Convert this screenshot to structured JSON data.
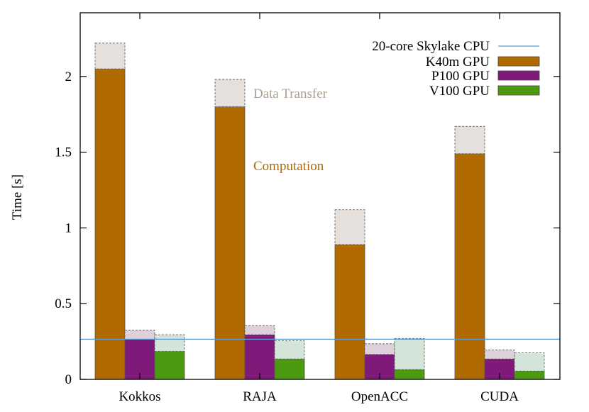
{
  "chart_data": {
    "type": "bar",
    "stacked": true,
    "title": "",
    "xlabel": "",
    "ylabel": "Time [s]",
    "ylim": [
      0,
      2.5
    ],
    "yticks": [
      0,
      0.5,
      1,
      1.5,
      2
    ],
    "ytick_labels": [
      "0",
      "0.5",
      "1",
      "1.5",
      "2"
    ],
    "grid": false,
    "legend_position": "top-right",
    "categories": [
      "Kokkos",
      "RAJA",
      "OpenACC",
      "CUDA"
    ],
    "reference_line": {
      "name": "20-core Skylake CPU",
      "value": 0.265,
      "color": "#5b9bd5"
    },
    "series": [
      {
        "name": "K40m GPU",
        "color": "#b06a00",
        "transfer_color": "#e5e0db",
        "computation": [
          2.05,
          1.8,
          0.89,
          1.49
        ],
        "transfer": [
          0.17,
          0.18,
          0.23,
          0.18
        ]
      },
      {
        "name": "P100 GPU",
        "color": "#7f1a7a",
        "transfer_color": "#ddd0da",
        "computation": [
          0.265,
          0.295,
          0.165,
          0.135
        ],
        "transfer": [
          0.06,
          0.06,
          0.07,
          0.06
        ]
      },
      {
        "name": "V100 GPU",
        "color": "#4c9a10",
        "transfer_color": "#d3e5d8",
        "computation": [
          0.185,
          0.135,
          0.065,
          0.055
        ],
        "transfer": [
          0.11,
          0.12,
          0.205,
          0.12
        ]
      }
    ],
    "annotations": [
      {
        "text": "Data Transfer",
        "color": "#b0a090"
      },
      {
        "text": "Computation",
        "color": "#b06a00"
      }
    ]
  }
}
